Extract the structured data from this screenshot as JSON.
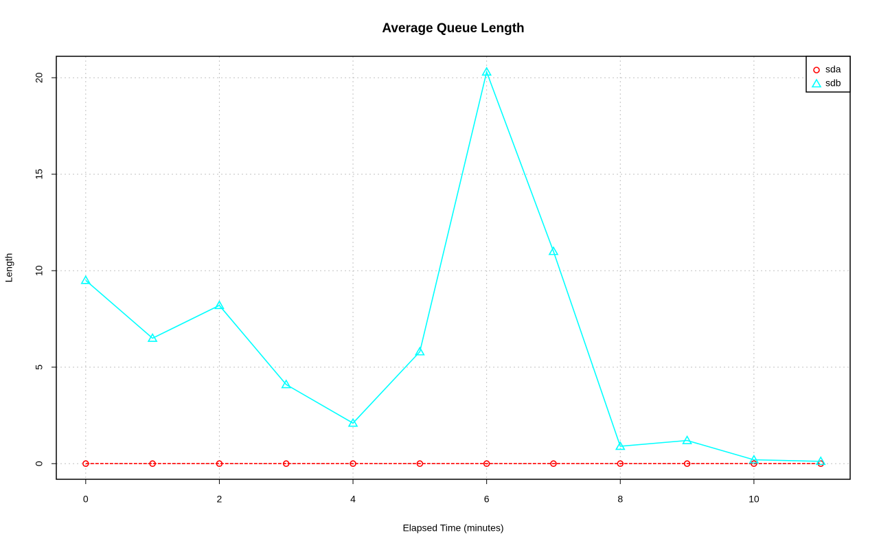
{
  "chart_data": {
    "type": "line",
    "title": "Average Queue Length",
    "x_label": "Elapsed Time (minutes)",
    "y_label": "Length",
    "x": [
      0,
      1,
      2,
      3,
      4,
      5,
      6,
      7,
      8,
      9,
      10,
      11
    ],
    "series": [
      {
        "name": "sda",
        "color": "#ff0000",
        "marker": "circle",
        "line_style": "dashed",
        "values": [
          0,
          0,
          0,
          0,
          0,
          0,
          0,
          0,
          0,
          0,
          0,
          0
        ]
      },
      {
        "name": "sdb",
        "color": "#00ffff",
        "marker": "triangle",
        "line_style": "solid",
        "values": [
          9.5,
          6.5,
          8.2,
          4.1,
          2.1,
          5.8,
          20.3,
          11.0,
          0.9,
          1.2,
          0.2,
          0.12
        ]
      }
    ],
    "xlim": [
      -0.44,
      11.44
    ],
    "xticks": [
      0,
      2,
      4,
      6,
      8,
      10
    ],
    "ylim": [
      -0.81,
      21.11
    ],
    "yticks": [
      0,
      5,
      10,
      15,
      20
    ],
    "grid": true,
    "legend_position": "top-right"
  }
}
